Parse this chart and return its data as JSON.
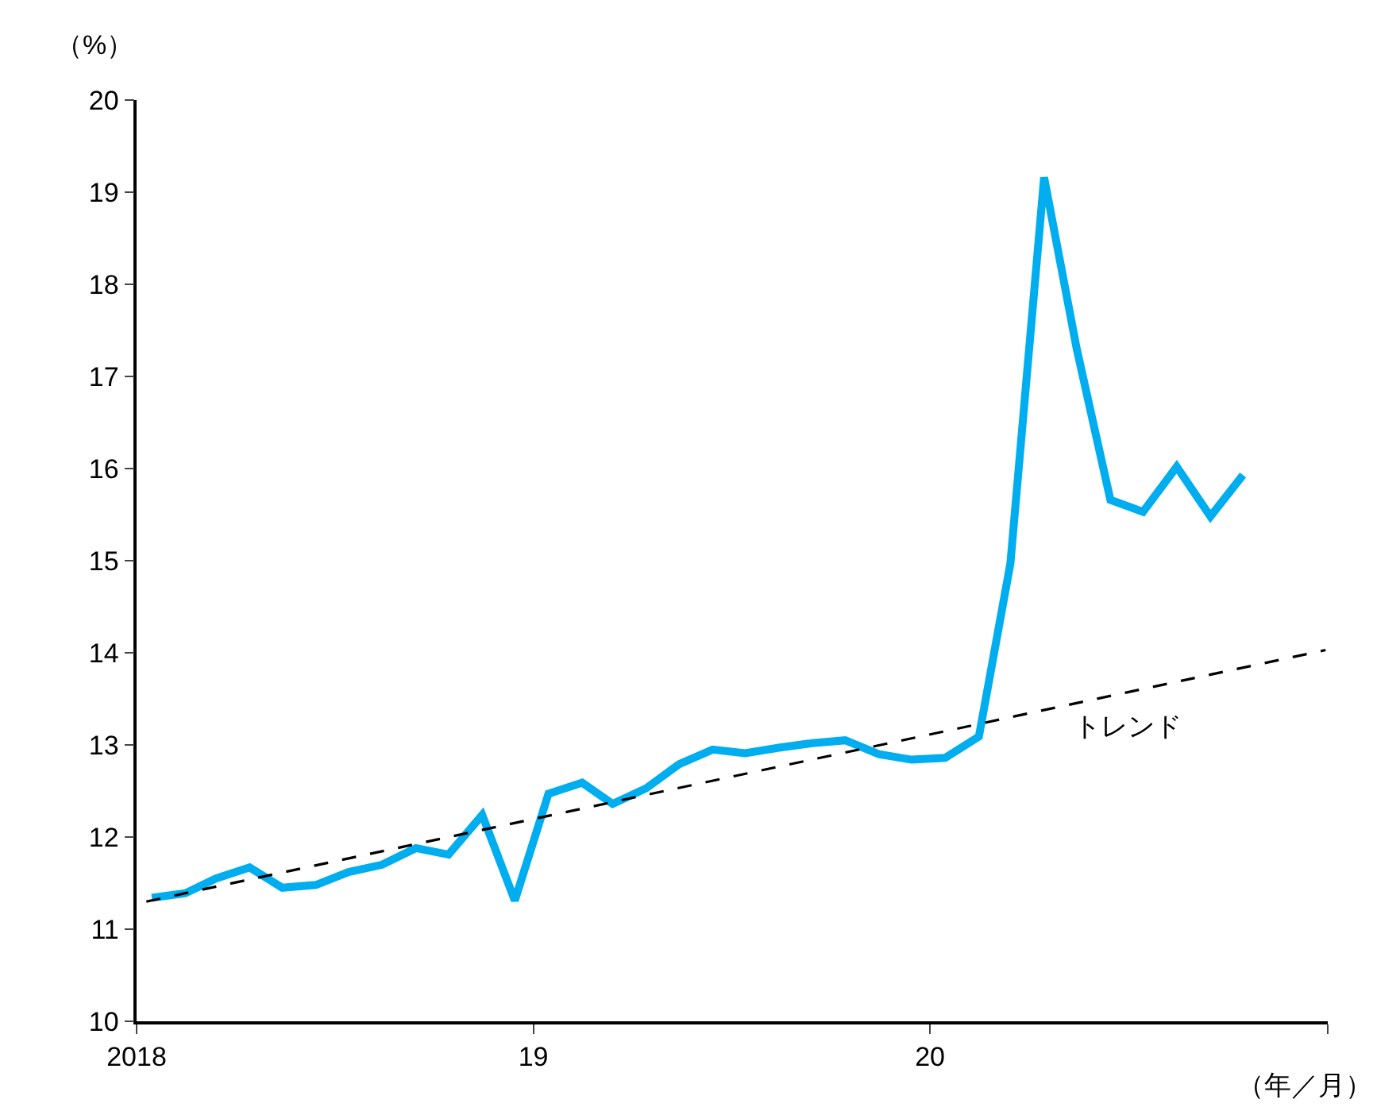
{
  "chart_data": {
    "type": "line",
    "xlabel": "（年／月）",
    "ylabel": "（%）",
    "x": [
      "2018-01-15",
      "2018-02-15",
      "2018-03-15",
      "2018-04-15",
      "2018-05-15",
      "2018-06-15",
      "2018-07-15",
      "2018-08-15",
      "2018-09-15",
      "2018-10-15",
      "2018-11-15",
      "2018-12-15",
      "2019-01-15",
      "2019-02-15",
      "2019-03-15",
      "2019-04-15",
      "2019-05-15",
      "2019-06-15",
      "2019-07-15",
      "2019-08-15",
      "2019-09-15",
      "2019-10-15",
      "2019-11-15",
      "2019-12-15",
      "2020-01-15",
      "2020-02-15",
      "2020-03-15",
      "2020-04-15",
      "2020-05-15",
      "2020-06-15",
      "2020-07-15",
      "2020-08-15",
      "2020-09-15",
      "2020-10-15"
    ],
    "series": [
      {
        "color": "#00aeef",
        "values": [
          11.34,
          11.39,
          11.55,
          11.67,
          11.45,
          11.48,
          11.62,
          11.7,
          11.88,
          11.81,
          12.24,
          11.31,
          12.47,
          12.59,
          12.36,
          12.53,
          12.79,
          12.95,
          12.91,
          12.97,
          13.02,
          13.05,
          12.9,
          12.84,
          12.86,
          13.09,
          14.97,
          19.16,
          17.3,
          15.66,
          15.53,
          16.02,
          15.48,
          15.93
        ]
      },
      {
        "type": "line",
        "color": "#000000",
        "line_style": "dashed",
        "x": [
          "2018-01-10",
          "2020-12-30"
        ],
        "values": [
          11.3,
          14.03
        ]
      }
    ],
    "annotations": [
      "トレンド"
    ],
    "xlim": [
      "2018-01-01",
      "2021-01-01"
    ],
    "xticks": [
      {
        "value": "2018-01-01",
        "label": "2018"
      },
      {
        "value": "2019-01-01",
        "label": "19"
      },
      {
        "value": "2020-01-01",
        "label": "20"
      },
      {
        "value": "2021-01-01",
        "label": null
      }
    ],
    "ylim": [
      10,
      20
    ],
    "yticks": [
      10,
      11,
      12,
      13,
      14,
      15,
      16,
      17,
      18,
      19,
      20
    ],
    "marker": "none",
    "line_style": "solid"
  }
}
